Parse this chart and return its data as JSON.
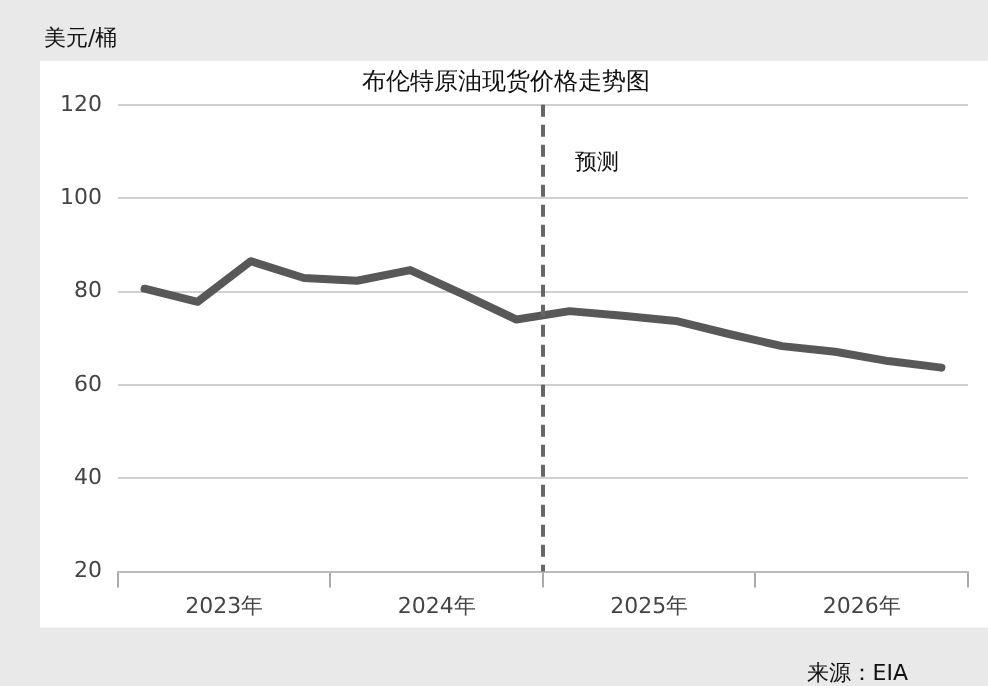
{
  "chart_data": {
    "type": "line",
    "title": "布伦特原油现货价格走势图",
    "ylabel": "美元/桶",
    "x": [
      2023.125,
      2023.375,
      2023.625,
      2023.875,
      2024.125,
      2024.375,
      2024.625,
      2024.875,
      2025.125,
      2025.375,
      2025.625,
      2025.875,
      2026.125,
      2026.375,
      2026.625,
      2026.875
    ],
    "series": [
      {
        "color": "#585858",
        "values": [
          80.6,
          77.8,
          86.5,
          82.9,
          82.3,
          84.6,
          79.4,
          74.0,
          75.8,
          74.8,
          73.7,
          70.9,
          68.3,
          67.1,
          65.1,
          63.7
        ]
      }
    ],
    "xlim": [
      2023,
      2027
    ],
    "xticks": [
      {
        "value": 2023,
        "label": null
      },
      {
        "value": 2023.5,
        "label": "2023年"
      },
      {
        "value": 2024,
        "label": null
      },
      {
        "value": 2024.5,
        "label": "2024年"
      },
      {
        "value": 2025,
        "label": null
      },
      {
        "value": 2025.5,
        "label": "2025年"
      },
      {
        "value": 2026,
        "label": null
      },
      {
        "value": 2026.5,
        "label": "2026年"
      },
      {
        "value": 2027,
        "label": null
      }
    ],
    "ylim": [
      20,
      120
    ],
    "yticks": [
      20,
      40,
      60,
      80,
      100,
      120
    ],
    "grid": "y",
    "legend": false,
    "marker": "none",
    "line_style": "solid",
    "ref_lines": [
      {
        "axis": "x",
        "value": 2025,
        "label": "预测",
        "color": "#666666",
        "line_style": "dashed"
      }
    ],
    "annotations": [
      "来源：EIA"
    ]
  }
}
